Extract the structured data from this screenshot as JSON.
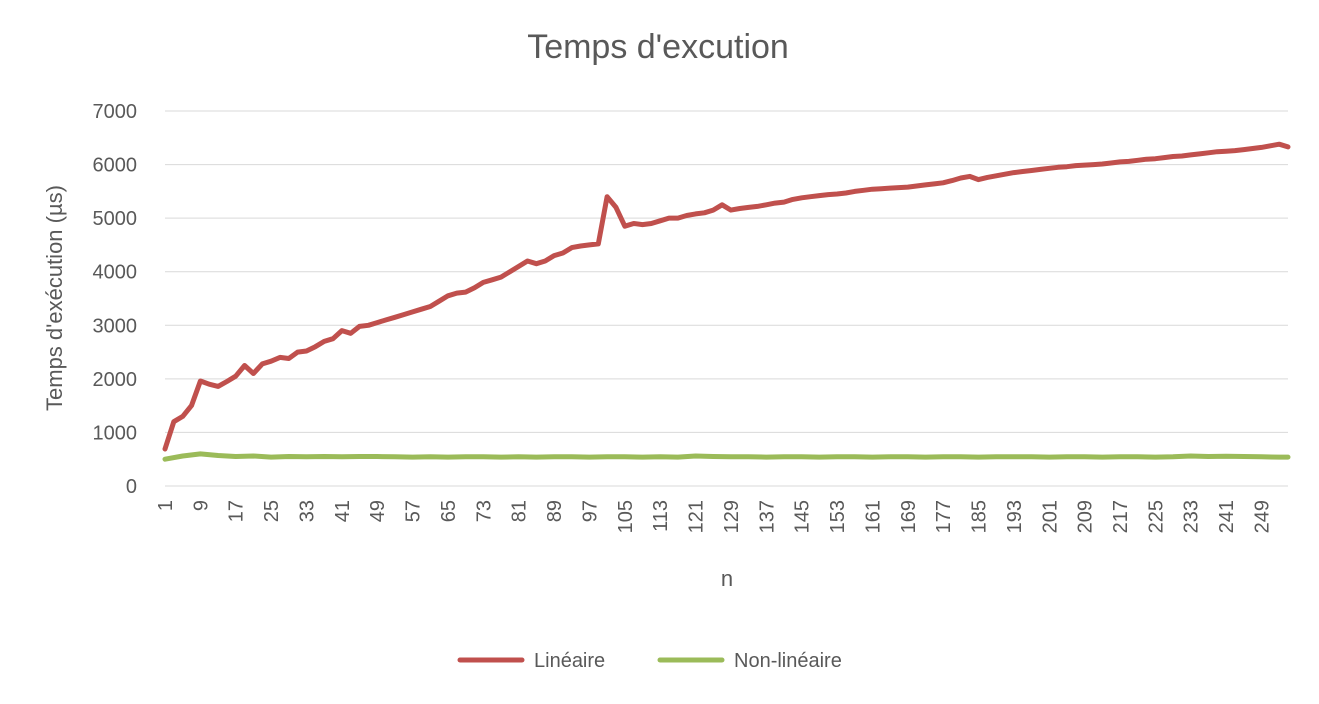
{
  "chart_data": {
    "type": "line",
    "title": "Temps d'excution",
    "xlabel": "n",
    "ylabel": "Temps d'exécution (µs)",
    "ylim": [
      0,
      7000
    ],
    "yticks": [
      0,
      1000,
      2000,
      3000,
      4000,
      5000,
      6000,
      7000
    ],
    "xlim": [
      1,
      255
    ],
    "xticks": [
      1,
      9,
      17,
      25,
      33,
      41,
      49,
      57,
      65,
      73,
      81,
      89,
      97,
      105,
      113,
      121,
      129,
      137,
      145,
      153,
      161,
      169,
      177,
      185,
      193,
      201,
      209,
      217,
      225,
      233,
      241,
      249
    ],
    "grid": true,
    "legend_position": "bottom",
    "series": [
      {
        "name": "Linéaire",
        "color": "#c0504d",
        "x": [
          1,
          3,
          5,
          7,
          9,
          11,
          13,
          15,
          17,
          19,
          21,
          23,
          25,
          27,
          29,
          31,
          33,
          35,
          37,
          39,
          41,
          43,
          45,
          47,
          49,
          51,
          53,
          55,
          57,
          59,
          61,
          63,
          65,
          67,
          69,
          71,
          73,
          75,
          77,
          79,
          81,
          83,
          85,
          87,
          89,
          91,
          93,
          95,
          97,
          99,
          101,
          103,
          105,
          107,
          109,
          111,
          113,
          115,
          117,
          119,
          121,
          123,
          125,
          127,
          129,
          131,
          133,
          135,
          137,
          139,
          141,
          143,
          145,
          147,
          149,
          151,
          153,
          155,
          157,
          159,
          161,
          163,
          165,
          167,
          169,
          171,
          173,
          175,
          177,
          179,
          181,
          183,
          185,
          187,
          189,
          191,
          193,
          195,
          197,
          199,
          201,
          203,
          205,
          207,
          209,
          211,
          213,
          215,
          217,
          219,
          221,
          223,
          225,
          227,
          229,
          231,
          233,
          235,
          237,
          239,
          241,
          243,
          245,
          247,
          249,
          251,
          253,
          255
        ],
        "y": [
          690,
          1200,
          1300,
          1500,
          1960,
          1900,
          1860,
          1950,
          2050,
          2250,
          2100,
          2280,
          2330,
          2400,
          2380,
          2500,
          2520,
          2600,
          2700,
          2750,
          2900,
          2850,
          2980,
          3000,
          3050,
          3100,
          3150,
          3200,
          3250,
          3300,
          3350,
          3450,
          3550,
          3600,
          3620,
          3700,
          3800,
          3850,
          3900,
          4000,
          4100,
          4200,
          4150,
          4200,
          4300,
          4350,
          4450,
          4480,
          4500,
          4520,
          5400,
          5200,
          4850,
          4900,
          4880,
          4900,
          4950,
          5000,
          5000,
          5050,
          5080,
          5100,
          5150,
          5250,
          5150,
          5180,
          5200,
          5220,
          5250,
          5280,
          5300,
          5350,
          5380,
          5400,
          5420,
          5440,
          5450,
          5470,
          5500,
          5520,
          5540,
          5550,
          5560,
          5570,
          5580,
          5600,
          5620,
          5640,
          5660,
          5700,
          5750,
          5780,
          5720,
          5760,
          5790,
          5820,
          5850,
          5870,
          5890,
          5910,
          5930,
          5950,
          5960,
          5980,
          5990,
          6000,
          6010,
          6030,
          6050,
          6060,
          6080,
          6100,
          6110,
          6130,
          6150,
          6160,
          6180,
          6200,
          6220,
          6240,
          6250,
          6260,
          6280,
          6300,
          6320,
          6350,
          6380,
          6330
        ]
      },
      {
        "name": "Non-linéaire",
        "color": "#9bbb59",
        "x": [
          1,
          5,
          9,
          13,
          17,
          21,
          25,
          29,
          33,
          37,
          41,
          45,
          49,
          53,
          57,
          61,
          65,
          69,
          73,
          77,
          81,
          85,
          89,
          93,
          97,
          101,
          105,
          109,
          113,
          117,
          121,
          125,
          129,
          133,
          137,
          141,
          145,
          149,
          153,
          157,
          161,
          165,
          169,
          173,
          177,
          181,
          185,
          189,
          193,
          197,
          201,
          205,
          209,
          213,
          217,
          221,
          225,
          229,
          233,
          237,
          241,
          245,
          249,
          253,
          255
        ],
        "y": [
          500,
          560,
          600,
          570,
          550,
          560,
          540,
          550,
          545,
          550,
          545,
          550,
          550,
          545,
          540,
          545,
          540,
          545,
          545,
          540,
          545,
          540,
          545,
          545,
          540,
          545,
          545,
          540,
          545,
          540,
          560,
          550,
          545,
          545,
          540,
          545,
          545,
          540,
          545,
          545,
          540,
          545,
          545,
          540,
          545,
          545,
          540,
          545,
          545,
          545,
          540,
          545,
          545,
          540,
          545,
          545,
          540,
          545,
          560,
          550,
          555,
          550,
          545,
          540,
          540
        ]
      }
    ]
  }
}
